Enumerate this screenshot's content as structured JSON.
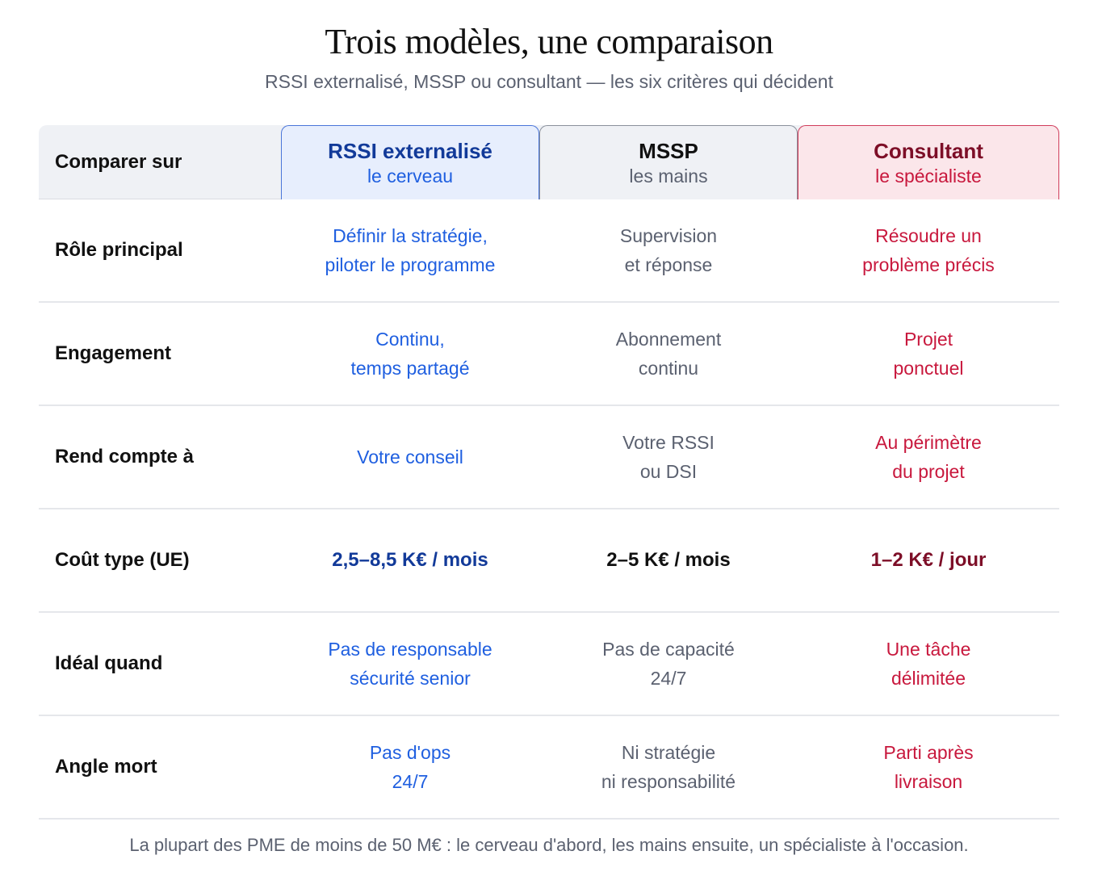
{
  "title": "Trois modèles, une comparaison",
  "subtitle": "RSSI externalisé, MSSP ou consultant — les six critères qui décident",
  "header": {
    "label": "Comparer sur",
    "columns": [
      {
        "name": "RSSI externalisé",
        "sub": "le cerveau"
      },
      {
        "name": "MSSP",
        "sub": "les mains"
      },
      {
        "name": "Consultant",
        "sub": "le spécialiste"
      }
    ]
  },
  "rows": [
    {
      "label": "Rôle principal",
      "cells": [
        [
          "Définir la stratégie,",
          "piloter le programme"
        ],
        [
          "Supervision",
          "et réponse"
        ],
        [
          "Résoudre un",
          "problème précis"
        ]
      ]
    },
    {
      "label": "Engagement",
      "cells": [
        [
          "Continu,",
          "temps partagé"
        ],
        [
          "Abonnement",
          "continu"
        ],
        [
          "Projet",
          "ponctuel"
        ]
      ]
    },
    {
      "label": "Rend compte à",
      "cells": [
        [
          "Votre conseil",
          ""
        ],
        [
          "Votre RSSI",
          "ou DSI"
        ],
        [
          "Au périmètre",
          "du projet"
        ]
      ]
    },
    {
      "label": "Coût type (UE)",
      "cells": [
        [
          "2,5–8,5 K€ / mois",
          ""
        ],
        [
          "2–5 K€ / mois",
          ""
        ],
        [
          "1–2 K€ / jour",
          ""
        ]
      ]
    },
    {
      "label": "Idéal quand",
      "cells": [
        [
          "Pas de responsable",
          "sécurité senior"
        ],
        [
          "Pas de capacité",
          "24/7"
        ],
        [
          "Une tâche",
          "délimitée"
        ]
      ]
    },
    {
      "label": "Angle mort",
      "cells": [
        [
          "Pas d'ops",
          "24/7"
        ],
        [
          "Ni stratégie",
          "ni responsabilité"
        ],
        [
          "Parti après",
          "livraison"
        ]
      ]
    }
  ],
  "footer": "La plupart des PME de moins de 50 M€ : le cerveau d'abord, les mains ensuite, un spécialiste à l'occasion.",
  "colors": {
    "accent_blue": "#1f5fe0",
    "accent_grey": "#5b6170",
    "accent_red": "#c8183d"
  }
}
